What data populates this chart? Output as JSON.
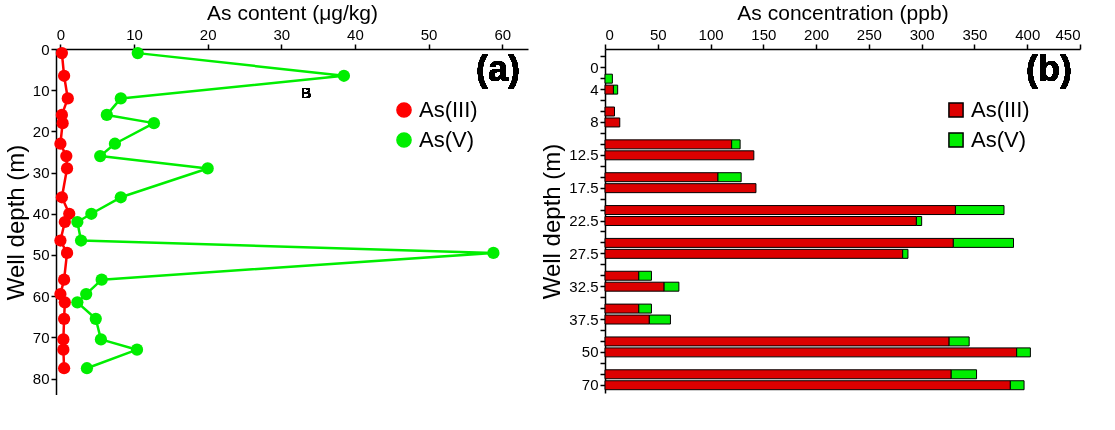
{
  "chart_data": [
    {
      "type": "line",
      "xlabel": "As content (μg/kg)",
      "ylabel": "Well depth (m)",
      "xlim": [
        -0.6,
        63.5
      ],
      "xticks": [
        0,
        10,
        20,
        30,
        40,
        50,
        60
      ],
      "ylim": [
        84,
        0
      ],
      "yticks": [
        0,
        10,
        20,
        30,
        40,
        50,
        60,
        70,
        80
      ],
      "marker": "circle",
      "legend": "top right",
      "annotations": [
        "(a)",
        "B"
      ],
      "series": [
        {
          "name": "As(III)",
          "color": "#ff0000",
          "x": [
            0.2,
            0.5,
            1.0,
            0.2,
            0.3,
            0,
            0.8,
            0.9,
            0.2,
            1.2,
            0.6,
            0,
            0.9,
            0.5,
            0,
            0.6,
            0.5,
            0.4,
            0.4,
            0.5
          ],
          "values": [
            1,
            6.5,
            12,
            16,
            18,
            23,
            26,
            29,
            36,
            40,
            42,
            46.5,
            49.5,
            56,
            59.5,
            61.5,
            65.5,
            70.5,
            73,
            77.5
          ]
        },
        {
          "name": "As(V)",
          "color": "#00ee00",
          "x": [
            10.5,
            38.5,
            8.2,
            6.3,
            12.7,
            7.4,
            5.4,
            20,
            8.2,
            4.2,
            2.3,
            2.8,
            58.8,
            5.6,
            3.5,
            2.3,
            4.8,
            5.5,
            10.4,
            3.6
          ],
          "values": [
            1,
            6.5,
            12,
            16,
            18,
            23,
            26,
            29,
            36,
            40,
            42,
            46.5,
            49.5,
            56,
            59.5,
            61.5,
            65.5,
            70.5,
            73,
            77.5
          ]
        }
      ]
    },
    {
      "type": "bar",
      "orientation": "horizontal",
      "stacked": true,
      "xlabel": "As concentration (ppb)",
      "ylabel": "Well depth (m)",
      "xlim": [
        0,
        450
      ],
      "xticks": [
        0,
        50,
        100,
        150,
        200,
        250,
        300,
        350,
        400,
        450
      ],
      "legend": "top right",
      "annotations": [
        "(b)"
      ],
      "categories": [
        null,
        "0",
        null,
        "4",
        null,
        null,
        "8",
        null,
        null,
        "12.5",
        null,
        null,
        "17.5",
        null,
        null,
        "22.5",
        null,
        null,
        "27.5",
        null,
        null,
        "32.5",
        null,
        null,
        "37.5",
        null,
        null,
        "50",
        null,
        null,
        "70"
      ],
      "series": [
        {
          "name": "As(III)",
          "color": "#dd0000",
          "values": [
            null,
            null,
            null,
            8,
            null,
            9,
            14,
            null,
            120,
            141,
            null,
            107,
            143,
            null,
            332,
            295,
            null,
            330,
            282,
            null,
            32,
            56,
            null,
            32,
            42,
            null,
            326,
            390,
            null,
            328,
            384
          ]
        },
        {
          "name": "As(V)",
          "color": "#00ee00",
          "values": [
            null,
            null,
            7,
            4,
            null,
            null,
            null,
            null,
            8,
            null,
            null,
            22,
            null,
            null,
            46,
            5,
            null,
            57,
            5,
            null,
            12,
            14,
            null,
            12,
            20,
            null,
            19,
            13,
            null,
            24,
            13
          ]
        }
      ]
    }
  ]
}
